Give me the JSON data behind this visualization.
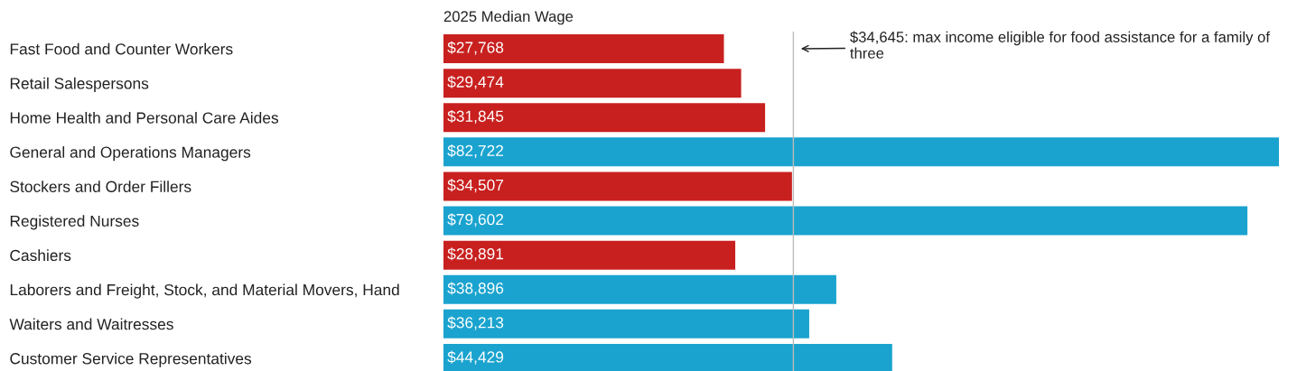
{
  "chart_data": {
    "type": "bar",
    "orientation": "horizontal",
    "title": "2025 Median Wage",
    "categories": [
      "Fast Food and Counter Workers",
      "Retail Salespersons",
      "Home Health and Personal Care Aides",
      "General and Operations Managers",
      "Stockers and Order Fillers",
      "Registered Nurses",
      "Cashiers",
      "Laborers and Freight, Stock, and Material Movers, Hand",
      "Waiters and Waitresses",
      "Customer Service Representatives"
    ],
    "values": [
      27768,
      29474,
      31845,
      82722,
      34507,
      79602,
      28891,
      38896,
      36213,
      44429
    ],
    "colors": [
      "#c8201f",
      "#c8201f",
      "#c8201f",
      "#1aa3cf",
      "#c8201f",
      "#1aa3cf",
      "#c8201f",
      "#1aa3cf",
      "#1aa3cf",
      "#1aa3cf"
    ],
    "value_labels": [
      "$27,768",
      "$29,474",
      "$31,845",
      "$82,722",
      "$34,507",
      "$79,602",
      "$28,891",
      "$38,896",
      "$36,213",
      "$44,429"
    ],
    "xlim": [
      0,
      82722
    ],
    "tick_labels": "y",
    "grid": false,
    "legend": false,
    "ref_lines": [
      {
        "axis": "x",
        "value": 34645,
        "color": "#bbbbbb"
      }
    ],
    "annotations": [
      "$34,645: max income eligible for food assistance for a family of three"
    ]
  }
}
